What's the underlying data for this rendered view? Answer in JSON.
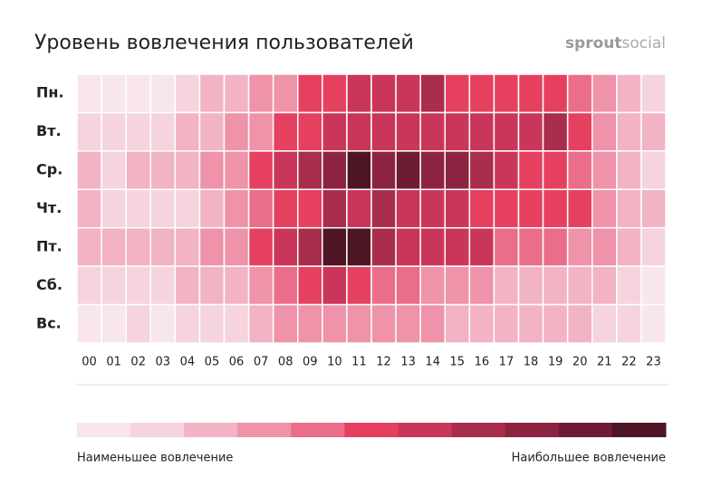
{
  "chart_data": {
    "type": "heatmap",
    "title": "Уровень вовлечения пользователей",
    "logo": {
      "bold": "sprout",
      "light": "social"
    },
    "x": [
      "00",
      "01",
      "02",
      "03",
      "04",
      "05",
      "06",
      "07",
      "08",
      "09",
      "10",
      "11",
      "12",
      "13",
      "14",
      "15",
      "16",
      "17",
      "18",
      "19",
      "20",
      "21",
      "22",
      "23"
    ],
    "y": [
      "Пн.",
      "Вт.",
      "Ср.",
      "Чт.",
      "Пт.",
      "Сб.",
      "Вс."
    ],
    "colors": [
      "#f8e6ec",
      "#f5d4de",
      "#f2b3c4",
      "#ee93a9",
      "#ea6d89",
      "#e5405f",
      "#c93659",
      "#a92d4d",
      "#8c2441",
      "#6e1c33",
      "#4e1524"
    ],
    "values": [
      [
        0,
        0,
        0,
        0,
        1,
        2,
        2,
        3,
        3,
        5,
        5,
        6,
        6,
        6,
        7,
        5,
        5,
        5,
        5,
        5,
        4,
        3,
        2,
        1
      ],
      [
        1,
        1,
        1,
        1,
        2,
        2,
        3,
        3,
        5,
        5,
        6,
        6,
        6,
        6,
        6,
        6,
        6,
        6,
        6,
        7,
        5,
        3,
        2,
        2
      ],
      [
        2,
        1,
        2,
        2,
        2,
        3,
        3,
        5,
        6,
        7,
        8,
        10,
        8,
        9,
        8,
        8,
        7,
        6,
        5,
        5,
        4,
        3,
        2,
        1
      ],
      [
        2,
        1,
        1,
        1,
        1,
        2,
        3,
        4,
        5,
        5,
        7,
        6,
        7,
        6,
        6,
        6,
        5,
        5,
        5,
        5,
        5,
        3,
        2,
        2
      ],
      [
        2,
        2,
        2,
        2,
        2,
        3,
        3,
        5,
        6,
        7,
        10,
        10,
        7,
        6,
        6,
        6,
        6,
        4,
        4,
        4,
        3,
        3,
        2,
        1
      ],
      [
        1,
        1,
        1,
        1,
        2,
        2,
        2,
        3,
        4,
        5,
        6,
        5,
        4,
        4,
        3,
        3,
        3,
        2,
        2,
        2,
        2,
        2,
        1,
        0
      ],
      [
        0,
        0,
        1,
        0,
        1,
        1,
        1,
        2,
        3,
        3,
        3,
        3,
        3,
        3,
        3,
        2,
        2,
        2,
        2,
        2,
        2,
        1,
        1,
        0
      ]
    ],
    "legend": {
      "low": "Наименьшее вовлечение",
      "high": "Наибольшее вовлечение"
    }
  }
}
